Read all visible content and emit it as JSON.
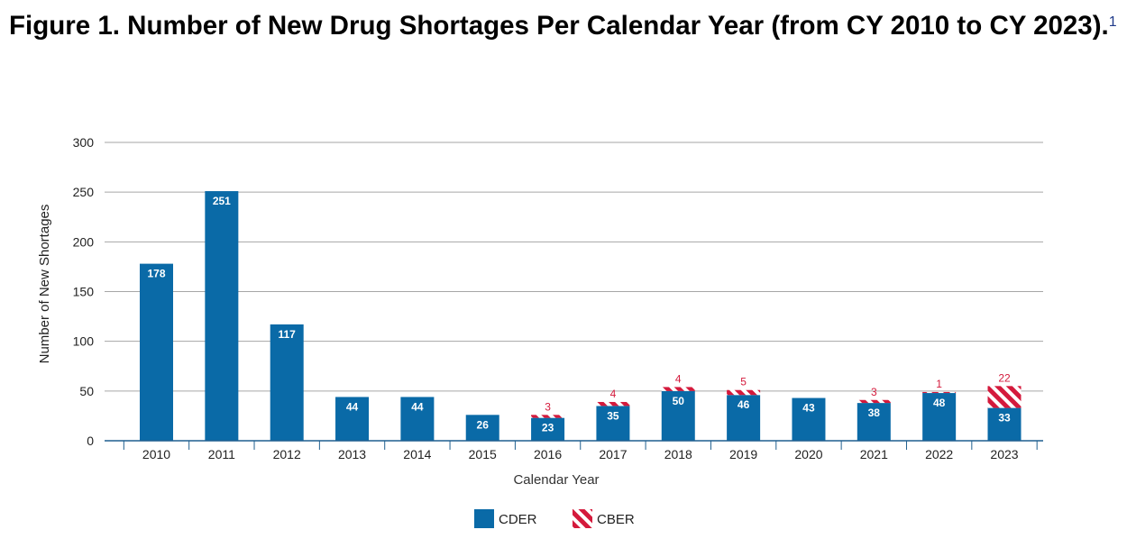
{
  "figure": {
    "title": "Figure 1.  Number of New Drug Shortages Per Calendar Year (from CY 2010 to CY 2023).",
    "footnote_marker": "1"
  },
  "chart_data": {
    "type": "bar",
    "stacked": true,
    "categories": [
      "2010",
      "2011",
      "2012",
      "2013",
      "2014",
      "2015",
      "2016",
      "2017",
      "2018",
      "2019",
      "2020",
      "2021",
      "2022",
      "2023"
    ],
    "series": [
      {
        "name": "CDER",
        "color": "#0a6aa7",
        "pattern": "solid",
        "values": [
          178,
          251,
          117,
          44,
          44,
          26,
          23,
          35,
          50,
          46,
          43,
          38,
          48,
          33
        ]
      },
      {
        "name": "CBER",
        "color": "#d41a3c",
        "pattern": "diagonal-hatch",
        "values": [
          0,
          0,
          0,
          0,
          0,
          0,
          3,
          4,
          4,
          5,
          0,
          3,
          1,
          22
        ]
      }
    ],
    "xlabel": "Calendar Year",
    "ylabel": "Number of New Shortages",
    "ylim": [
      0,
      300
    ],
    "yticks": [
      0,
      50,
      100,
      150,
      200,
      250,
      300
    ],
    "grid": true,
    "legend": "bottom-center"
  }
}
